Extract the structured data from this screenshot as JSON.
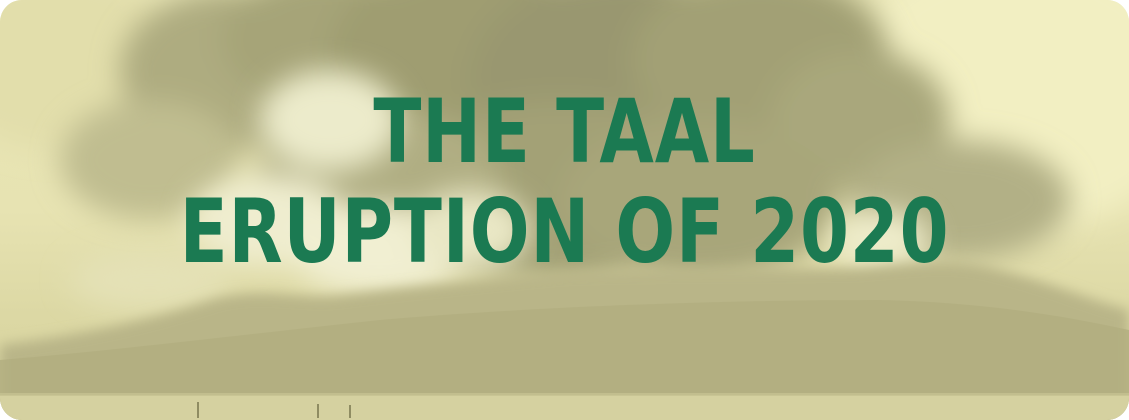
{
  "banner": {
    "title_line_1": "THE TAAL",
    "title_line_2": "ERUPTION OF 2020"
  },
  "colors": {
    "title_text": "#1b7a52",
    "sky_tint": "#e9e6b6",
    "smoke_dark": "#9c9a6f",
    "mountain": "#b8b487",
    "water": "#d7d3a2"
  }
}
